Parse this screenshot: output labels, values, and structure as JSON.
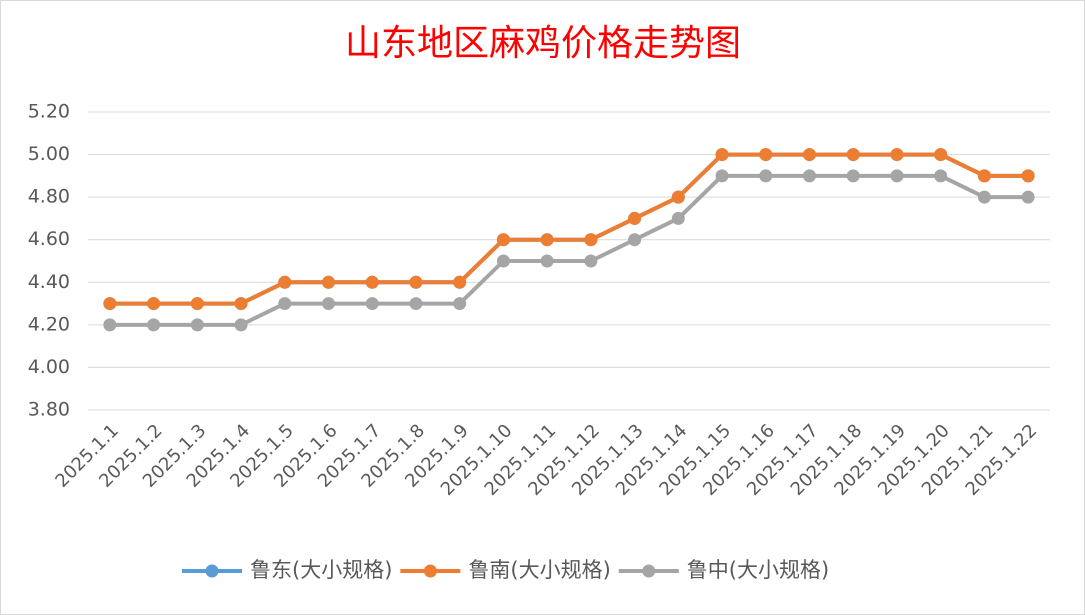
{
  "chart_data": {
    "type": "line",
    "title": "山东地区麻鸡价格走势图",
    "categories": [
      "2025.1.1",
      "2025.1.2",
      "2025.1.3",
      "2025.1.4",
      "2025.1.5",
      "2025.1.6",
      "2025.1.7",
      "2025.1.8",
      "2025.1.9",
      "2025.1.10",
      "2025.1.11",
      "2025.1.12",
      "2025.1.13",
      "2025.1.14",
      "2025.1.15",
      "2025.1.16",
      "2025.1.17",
      "2025.1.18",
      "2025.1.19",
      "2025.1.20",
      "2025.1.21",
      "2025.1.22"
    ],
    "series": [
      {
        "name": "鲁东(大小规格)",
        "color": "#5b9bd5",
        "values": [
          4.3,
          4.3,
          4.3,
          4.3,
          4.4,
          4.4,
          4.4,
          4.4,
          4.4,
          4.6,
          4.6,
          4.6,
          4.7,
          4.8,
          5.0,
          5.0,
          5.0,
          5.0,
          5.0,
          5.0,
          4.9,
          4.9
        ]
      },
      {
        "name": "鲁南(大小规格)",
        "color": "#ed7d31",
        "values": [
          4.3,
          4.3,
          4.3,
          4.3,
          4.4,
          4.4,
          4.4,
          4.4,
          4.4,
          4.6,
          4.6,
          4.6,
          4.7,
          4.8,
          5.0,
          5.0,
          5.0,
          5.0,
          5.0,
          5.0,
          4.9,
          4.9
        ]
      },
      {
        "name": "鲁中(大小规格)",
        "color": "#a5a5a5",
        "values": [
          4.2,
          4.2,
          4.2,
          4.2,
          4.3,
          4.3,
          4.3,
          4.3,
          4.3,
          4.5,
          4.5,
          4.5,
          4.6,
          4.7,
          4.9,
          4.9,
          4.9,
          4.9,
          4.9,
          4.9,
          4.8,
          4.8
        ]
      }
    ],
    "ylim": [
      3.8,
      5.2
    ],
    "yticks": [
      {
        "value": 3.8,
        "label": "3.80"
      },
      {
        "value": 4.0,
        "label": "4.00"
      },
      {
        "value": 4.2,
        "label": "4.20"
      },
      {
        "value": 4.4,
        "label": "4.40"
      },
      {
        "value": 4.6,
        "label": "4.60"
      },
      {
        "value": 4.8,
        "label": "4.80"
      },
      {
        "value": 5.0,
        "label": "5.00"
      },
      {
        "value": 5.2,
        "label": "5.20"
      }
    ],
    "grid": true,
    "legend": "bottom"
  }
}
